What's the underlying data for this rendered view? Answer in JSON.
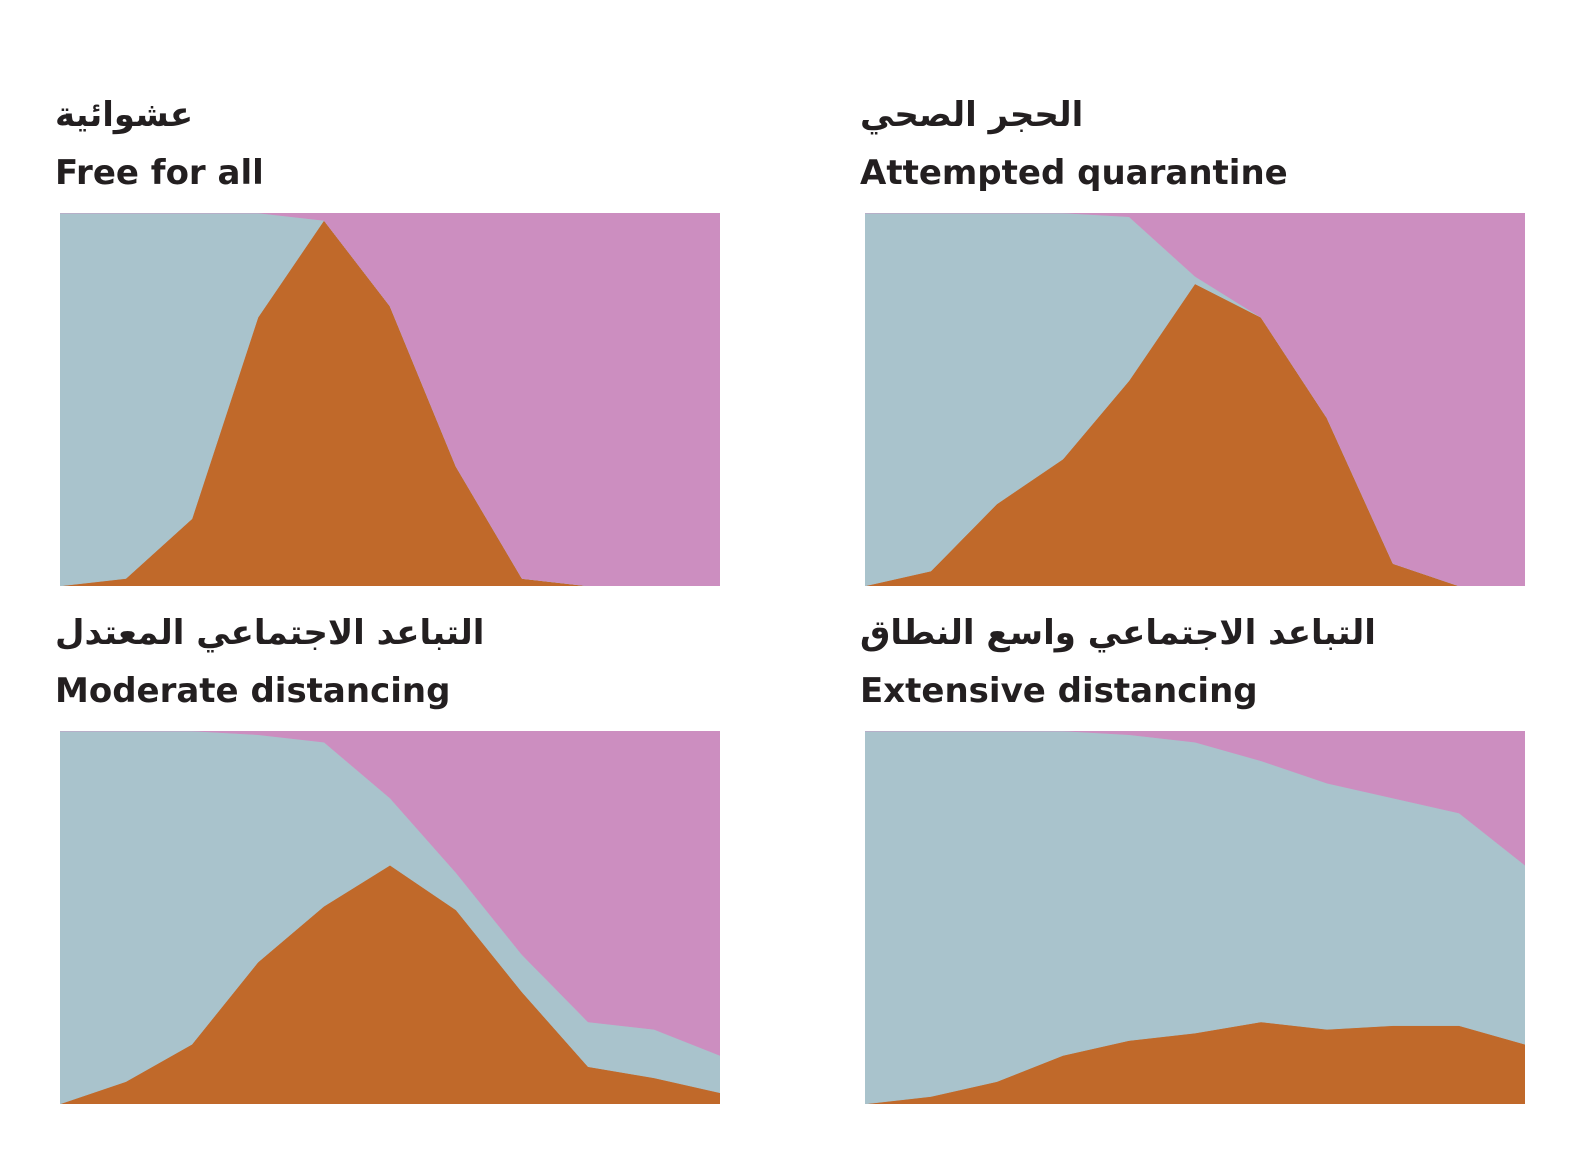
{
  "colors": {
    "infected": "#C0692A",
    "healthy": "#A9C3CC",
    "recovered": "#CC8EC0",
    "title": "#231F20"
  },
  "chart_data": [
    {
      "type": "area",
      "stacking": "stacked-normalized",
      "title_ar": "عشوائية",
      "title_en": "Free for all",
      "xlabel": "",
      "ylabel": "",
      "x": [
        0,
        10,
        20,
        30,
        40,
        50,
        60,
        70,
        80,
        90,
        100
      ],
      "ylim": [
        0,
        1
      ],
      "grid": false,
      "series": [
        {
          "key": "infected",
          "values": [
            0.0,
            0.02,
            0.18,
            0.72,
            0.98,
            0.75,
            0.32,
            0.02,
            0.0,
            0.0,
            0.0
          ]
        },
        {
          "key": "healthy",
          "values": [
            1.0,
            0.98,
            0.82,
            0.28,
            0.0,
            0.0,
            0.0,
            0.0,
            0.0,
            0.0,
            0.0
          ]
        },
        {
          "key": "recovered",
          "values": [
            0.0,
            0.0,
            0.0,
            0.0,
            0.02,
            0.25,
            0.68,
            0.98,
            1.0,
            1.0,
            1.0
          ]
        }
      ]
    },
    {
      "type": "area",
      "stacking": "stacked-normalized",
      "title_ar": "الحجر الصحي",
      "title_en": "Attempted quarantine",
      "xlabel": "",
      "ylabel": "",
      "x": [
        0,
        10,
        20,
        30,
        40,
        50,
        60,
        70,
        80,
        90,
        100
      ],
      "ylim": [
        0,
        1
      ],
      "grid": false,
      "series": [
        {
          "key": "infected",
          "values": [
            0.0,
            0.04,
            0.22,
            0.34,
            0.55,
            0.81,
            0.72,
            0.45,
            0.06,
            0.0,
            0.0
          ]
        },
        {
          "key": "healthy",
          "values": [
            1.0,
            0.96,
            0.78,
            0.66,
            0.44,
            0.02,
            0.0,
            0.0,
            0.0,
            0.0,
            0.0
          ]
        },
        {
          "key": "recovered",
          "values": [
            0.0,
            0.0,
            0.0,
            0.0,
            0.01,
            0.17,
            0.28,
            0.55,
            0.94,
            1.0,
            1.0
          ]
        }
      ]
    },
    {
      "type": "area",
      "stacking": "stacked-normalized",
      "title_ar": "التباعد الاجتماعي المعتدل",
      "title_en": "Moderate distancing",
      "xlabel": "",
      "ylabel": "",
      "x": [
        0,
        10,
        20,
        30,
        40,
        50,
        60,
        70,
        80,
        90,
        100
      ],
      "ylim": [
        0,
        1
      ],
      "grid": false,
      "series": [
        {
          "key": "infected",
          "values": [
            0.0,
            0.06,
            0.16,
            0.38,
            0.53,
            0.64,
            0.52,
            0.3,
            0.1,
            0.07,
            0.03
          ]
        },
        {
          "key": "healthy",
          "values": [
            1.0,
            0.94,
            0.84,
            0.61,
            0.44,
            0.18,
            0.1,
            0.1,
            0.12,
            0.13,
            0.1
          ]
        },
        {
          "key": "recovered",
          "values": [
            0.0,
            0.0,
            0.0,
            0.01,
            0.03,
            0.18,
            0.38,
            0.6,
            0.78,
            0.8,
            0.87
          ]
        }
      ]
    },
    {
      "type": "area",
      "stacking": "stacked-normalized",
      "title_ar": "التباعد الاجتماعي واسع النطاق",
      "title_en": "Extensive distancing",
      "xlabel": "",
      "ylabel": "",
      "x": [
        0,
        10,
        20,
        30,
        40,
        50,
        60,
        70,
        80,
        90,
        100
      ],
      "ylim": [
        0,
        1
      ],
      "grid": false,
      "series": [
        {
          "key": "infected",
          "values": [
            0.0,
            0.02,
            0.06,
            0.13,
            0.17,
            0.19,
            0.22,
            0.2,
            0.21,
            0.21,
            0.16
          ]
        },
        {
          "key": "healthy",
          "values": [
            1.0,
            0.98,
            0.94,
            0.87,
            0.82,
            0.78,
            0.7,
            0.66,
            0.61,
            0.57,
            0.48
          ]
        },
        {
          "key": "recovered",
          "values": [
            0.0,
            0.0,
            0.0,
            0.0,
            0.01,
            0.03,
            0.08,
            0.14,
            0.18,
            0.22,
            0.36
          ]
        }
      ]
    }
  ]
}
